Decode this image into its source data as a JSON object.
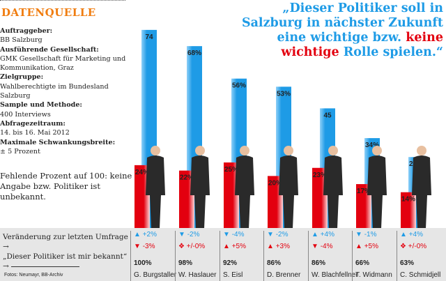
{
  "source": {
    "title": "DATENQUELLE",
    "items": [
      {
        "k": "Auftraggeber:",
        "v": "BB Salzburg"
      },
      {
        "k": "Ausführende Gesellschaft:",
        "v": "GMK Gesellschaft für Marketing und Kommunikation, Graz"
      },
      {
        "k": "Zielgruppe:",
        "v": "Wahlberechtigte im Bundesland Salzburg"
      },
      {
        "k": "Sample und Methode:",
        "v": "400 Interviews"
      },
      {
        "k": "Abfragezeitraum:",
        "v": "14. bis 16. Mai 2012"
      },
      {
        "k": "Maximale Schwankungsbreite:",
        "v": "± 5 Prozent"
      }
    ],
    "missing": "Fehlende Prozent auf 100: keine Angabe bzw. Politiker ist unbekannt."
  },
  "legend": {
    "change": "Veränderung zur letzten Umfrage",
    "arrow": "→",
    "known": "„Dieser Politiker ist mir bekannt“",
    "photo": "Fotos: Neumayr, BB-Archiv"
  },
  "colors": {
    "blue": "#1e9be6",
    "red": "#e3000f",
    "orange": "#f07d10"
  },
  "chart_data": {
    "type": "bar",
    "title_a": "„Dieser Politiker soll in Salzburg in nächster Zukunft eine wichtige bzw. ",
    "title_b": "keine wichtige",
    "title_c": " Rolle spielen.“",
    "categories": [
      "G. Burgstaller",
      "W. Haslauer",
      "S. Eisl",
      "D. Brenner",
      "W. Blachfellner",
      "T. Widmann",
      "C. Schmidjell"
    ],
    "series": [
      {
        "name": "wichtige",
        "color": "#1e9be6",
        "values": [
          74,
          68,
          56,
          53,
          45,
          34,
          27
        ],
        "labels": [
          "74",
          "68%",
          "56%",
          "53%",
          "45",
          "34%",
          "27%"
        ],
        "change": [
          "+2%",
          "-2%",
          "-4%",
          "-2%",
          "+4%",
          "-1%",
          "+4%"
        ],
        "change_dir": [
          "up",
          "down",
          "down",
          "down",
          "up",
          "down",
          "up"
        ]
      },
      {
        "name": "keine wichtige",
        "color": "#e3000f",
        "values": [
          24,
          22,
          25,
          20,
          23,
          17,
          14
        ],
        "labels": [
          "24%",
          "22%",
          "25%",
          "20%",
          "23%",
          "17%",
          "14%"
        ],
        "change": [
          "-3%",
          "+/-0%",
          "+5%",
          "+3%",
          "-4%",
          "+5%",
          "+/-0%"
        ],
        "change_dir": [
          "down",
          "same",
          "up",
          "up",
          "down",
          "up",
          "same"
        ]
      }
    ],
    "known": [
      "100%",
      "98%",
      "92%",
      "86%",
      "86%",
      "66%",
      "63%"
    ],
    "ylim": [
      0,
      80
    ]
  }
}
